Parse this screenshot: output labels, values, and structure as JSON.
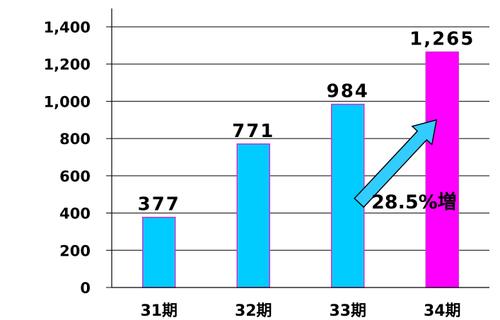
{
  "chart_data": {
    "type": "bar",
    "categories": [
      "31期",
      "32期",
      "33期",
      "34期"
    ],
    "values": [
      377,
      771,
      984,
      1265
    ],
    "data_labels": [
      "377",
      "771",
      "984",
      "1,265"
    ],
    "y_ticks": [
      0,
      200,
      400,
      600,
      800,
      1000,
      1200,
      1400
    ],
    "y_tick_labels": [
      "0",
      "200",
      "400",
      "600",
      "800",
      "1,000",
      "1,200",
      "1,400"
    ],
    "ylim": [
      0,
      1400
    ],
    "grid": true,
    "bar_colors": [
      "#00ccff",
      "#00ccff",
      "#00ccff",
      "#ff00ff"
    ],
    "bar_edge_color": "#cc33cc",
    "annotation": {
      "text": "28.5%増",
      "arrow_color": "#33ccff",
      "arrow_from_category": "33期",
      "arrow_to_category": "34期"
    }
  }
}
